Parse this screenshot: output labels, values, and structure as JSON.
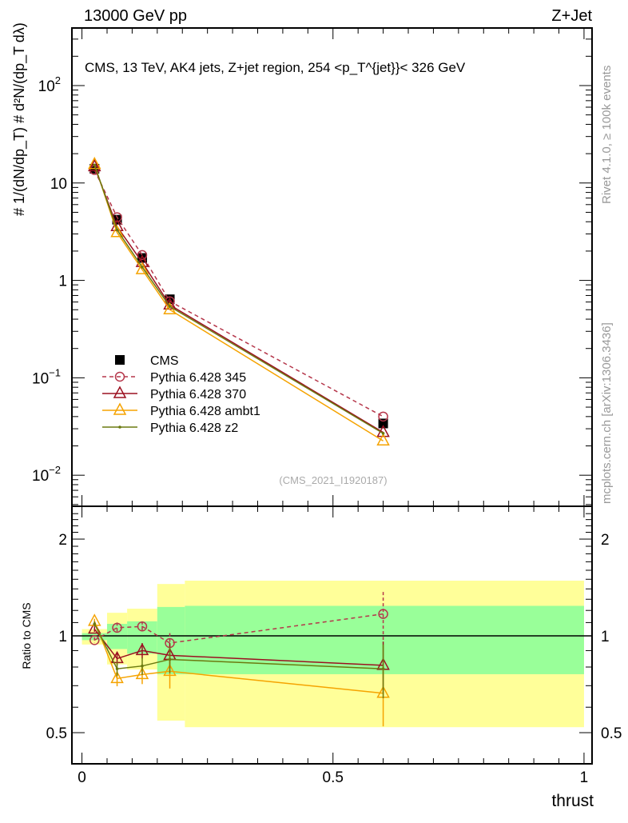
{
  "header": {
    "left": "13000 GeV pp",
    "right": "Z+Jet"
  },
  "side_labels": {
    "rivet": "Rivet 4.1.0, ≥ 100k events",
    "mcplots": "mcplots.cern.ch [arXiv:1306.3436]"
  },
  "chart_data": [
    {
      "type": "line",
      "title": "CMS, 13 TeV, AK4 jets, Z+jet region, 254 <p_T^{jet}}< 326 GeV",
      "title_main": "CMS, 13 TeV, AK4 jets, Z+jet region, 254 <p",
      "title_sup": "{jet",
      "title_sub": "T",
      "title_end": "}< 326 GeV",
      "ylabel": "# 1/(dN/dp_T) # d²N/(dp_T dλ)",
      "yscale": "log",
      "ylim": [
        0.0048,
        390
      ],
      "xlim": [
        -0.02,
        1.016
      ],
      "ytick_labels": [
        {
          "v": 0.01,
          "base": "10",
          "exp": "−2"
        },
        {
          "v": 0.1,
          "base": "10",
          "exp": "−1"
        },
        {
          "v": 1,
          "base": "1",
          "exp": ""
        },
        {
          "v": 10,
          "base": "10",
          "exp": ""
        },
        {
          "v": 100,
          "base": "10",
          "exp": "2"
        }
      ],
      "watermark": "(CMS_2021_I1920187)",
      "legend_position": "bottom-left",
      "x": [
        0.025,
        0.07,
        0.12,
        0.175,
        0.6
      ],
      "series": [
        {
          "name": "CMS",
          "color": "#000000",
          "marker": "square",
          "values": [
            14.0,
            4.2,
            1.7,
            0.64,
            0.034
          ]
        },
        {
          "name": "Pythia 6.428 345",
          "color": "#b5364a",
          "marker": "circle",
          "dash": true,
          "values": [
            13.6,
            4.45,
            1.82,
            0.61,
            0.04
          ]
        },
        {
          "name": "Pythia 6.428 370",
          "color": "#9b1020",
          "marker": "triangle",
          "values": [
            14.7,
            3.57,
            1.53,
            0.56,
            0.0275
          ]
        },
        {
          "name": "Pythia 6.428 ambt1",
          "color": "#f5a300",
          "marker": "triangle",
          "values": [
            15.5,
            3.1,
            1.29,
            0.5,
            0.0225
          ]
        },
        {
          "name": "Pythia 6.428 z2",
          "color": "#6b7a10",
          "marker": "dot",
          "values": [
            15.3,
            3.3,
            1.37,
            0.54,
            0.0269
          ]
        }
      ]
    },
    {
      "type": "line",
      "ylabel": "Ratio to CMS",
      "xlabel": "thrust",
      "yscale": "log",
      "ylim": [
        0.4,
        2.53
      ],
      "xlim": [
        -0.02,
        1.016
      ],
      "ytick_labels": [
        {
          "v": 0.5,
          "label": "0.5"
        },
        {
          "v": 1,
          "label": "1"
        },
        {
          "v": 2,
          "label": "2"
        }
      ],
      "xtick_labels": [
        {
          "v": 0,
          "label": "0"
        },
        {
          "v": 0.5,
          "label": "0.5"
        },
        {
          "v": 1,
          "label": "1"
        }
      ],
      "bins": [
        [
          0.0,
          0.05
        ],
        [
          0.05,
          0.09
        ],
        [
          0.09,
          0.15
        ],
        [
          0.15,
          0.205
        ],
        [
          0.205,
          1.0
        ]
      ],
      "band_stat": {
        "color": "#99ff99",
        "lo": [
          0.97,
          0.91,
          0.88,
          0.76,
          0.76
        ],
        "hi": [
          1.02,
          1.09,
          1.11,
          1.23,
          1.24
        ]
      },
      "band_total": {
        "color": "#ffff99",
        "lo": [
          0.94,
          0.815,
          0.786,
          0.545,
          0.52
        ],
        "hi": [
          1.05,
          1.18,
          1.215,
          1.45,
          1.485
        ]
      },
      "x": [
        0.025,
        0.07,
        0.12,
        0.175,
        0.6
      ],
      "series": [
        {
          "name": "Pythia 6.428 345",
          "color": "#b5364a",
          "marker": "circle",
          "dash": true,
          "values": [
            0.97,
            1.06,
            1.07,
            0.95,
            1.17
          ],
          "err": [
            0.02,
            0.04,
            0.04,
            0.07,
            0.2
          ]
        },
        {
          "name": "Pythia 6.428 370",
          "color": "#9b1020",
          "marker": "triangle",
          "values": [
            1.05,
            0.85,
            0.9,
            0.87,
            0.81
          ],
          "err": [
            0.02,
            0.04,
            0.05,
            0.08,
            0.15
          ]
        },
        {
          "name": "Pythia 6.428 ambt1",
          "color": "#f5a300",
          "marker": "triangle",
          "values": [
            1.11,
            0.737,
            0.758,
            0.776,
            0.663
          ],
          "err": [
            0.02,
            0.04,
            0.05,
            0.09,
            0.14
          ]
        },
        {
          "name": "Pythia 6.428 z2",
          "color": "#6b7a10",
          "marker": "dot",
          "values": [
            1.09,
            0.79,
            0.806,
            0.845,
            0.79
          ],
          "err": [
            0.02,
            0.04,
            0.05,
            0.08,
            0.15
          ]
        }
      ]
    }
  ]
}
